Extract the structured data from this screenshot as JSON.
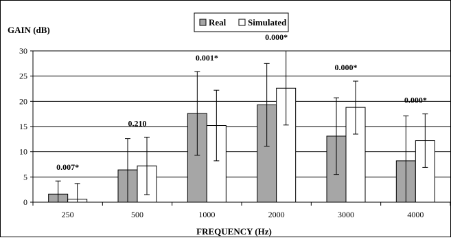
{
  "chart_data": {
    "type": "bar",
    "ylabel": "GAIN (dB)",
    "xlabel": "FREQUENCY (Hz)",
    "categories": [
      "250",
      "500",
      "1000",
      "2000",
      "3000",
      "4000"
    ],
    "ylim": [
      0,
      30
    ],
    "yticks": [
      0,
      5,
      10,
      15,
      20,
      25,
      30
    ],
    "grid": true,
    "legend_position": "top-center",
    "series": [
      {
        "name": "Real",
        "color": "#a6a6a6",
        "values": [
          1.6,
          6.4,
          17.6,
          19.3,
          13.1,
          8.2
        ],
        "error_low": [
          0,
          0,
          9.3,
          11.1,
          5.5,
          0
        ],
        "error_high": [
          4.2,
          12.6,
          25.9,
          27.5,
          20.7,
          17.1
        ]
      },
      {
        "name": "Simulated",
        "color": "#ffffff",
        "values": [
          0.6,
          7.2,
          15.2,
          22.6,
          18.8,
          12.2
        ],
        "error_low": [
          0,
          1.5,
          8.2,
          15.3,
          13.5,
          6.9
        ],
        "error_high": [
          3.7,
          12.9,
          22.2,
          30.0,
          24.0,
          17.5
        ]
      }
    ],
    "annotations": [
      "0.007*",
      "0.210",
      "0.001*",
      "0.000*",
      "0.000*",
      "0.000*"
    ]
  }
}
